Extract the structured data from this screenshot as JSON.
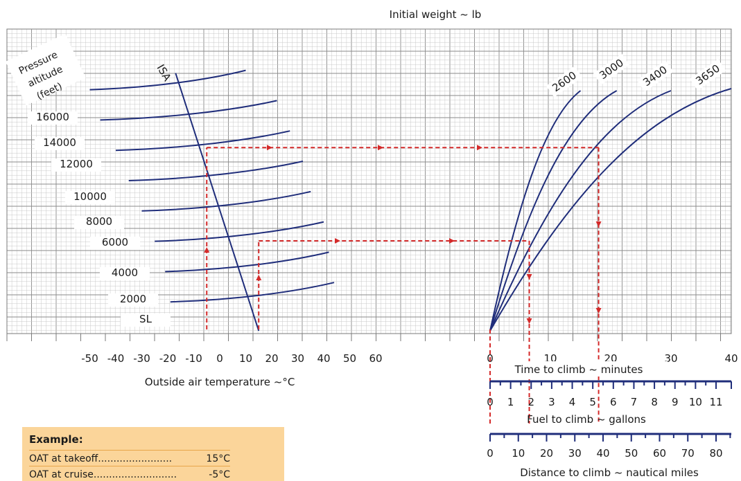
{
  "chart_data": {
    "type": "line",
    "title": "",
    "top_label": "Initial weight ~ lb",
    "panels": [
      {
        "name": "temperature-altitude",
        "xlabel": "Outside air temperature ~°C",
        "x_ticks": [
          "-50",
          "-40",
          "-30",
          "-20",
          "-10",
          "0",
          "10",
          "20",
          "30",
          "40",
          "50",
          "60"
        ],
        "xlim": [
          -50,
          60
        ],
        "corner_label": [
          "Pressure",
          "altitude",
          "(feet)"
        ],
        "altitude_labels": [
          "16000",
          "14000",
          "12000",
          "10000",
          "8000",
          "6000",
          "4000",
          "2000",
          "SL"
        ],
        "isa_label": "ISA",
        "isa_line": [
          {
            "t": 15,
            "alt": 0
          },
          {
            "t": -17,
            "alt": 16000
          }
        ],
        "series": [
          {
            "alt": 16000,
            "t_start": -50,
            "t_end": 10
          },
          {
            "alt": 14000,
            "t_start": -46,
            "t_end": 22
          },
          {
            "alt": 12000,
            "t_start": -40,
            "t_end": 27
          },
          {
            "alt": 10000,
            "t_start": -35,
            "t_end": 32
          },
          {
            "alt": 8000,
            "t_start": -30,
            "t_end": 35
          },
          {
            "alt": 6000,
            "t_start": -25,
            "t_end": 40
          },
          {
            "alt": 4000,
            "t_start": -21,
            "t_end": 42
          },
          {
            "alt": 2000,
            "t_start": -19,
            "t_end": 44
          }
        ]
      },
      {
        "name": "time-to-climb",
        "xlabel": "Time to climb ~ minutes",
        "x_ticks": [
          "0",
          "10",
          "20",
          "30",
          "40"
        ],
        "xlim": [
          0,
          40
        ],
        "weight_series": [
          {
            "weight": "2600",
            "t_at_top": 15
          },
          {
            "weight": "3000",
            "t_at_top": 21
          },
          {
            "weight": "3400",
            "t_at_top": 30
          },
          {
            "weight": "3650",
            "t_at_top": 40
          }
        ]
      }
    ],
    "fuel_scale": {
      "label": "Fuel to climb ~ gallons",
      "ticks": [
        "0",
        "1",
        "2",
        "3",
        "4",
        "5",
        "6",
        "7",
        "8",
        "9",
        "10",
        "11"
      ]
    },
    "distance_scale": {
      "label": "Distance to climb ~ nautical miles",
      "ticks": [
        "0",
        "10",
        "20",
        "30",
        "40",
        "50",
        "60",
        "70",
        "80"
      ]
    },
    "example_paths": [
      {
        "t_start": 15,
        "alt_start": 0,
        "t_end": -5,
        "alt_end": 12000,
        "time_start": 6.5,
        "time_end": 18
      }
    ],
    "colors": {
      "curves": "#1f2d7a",
      "arrows": "#d42a2a",
      "grid_minor": "#c8c8c8",
      "grid_major": "#8a8a8a",
      "example_bg": "#fbd59a"
    }
  },
  "example": {
    "title": "Example:",
    "rows": [
      {
        "label": "OAT at takeoff........................",
        "value": "15°C"
      },
      {
        "label": "OAT at cruise...........................",
        "value": "-5°C"
      }
    ]
  }
}
